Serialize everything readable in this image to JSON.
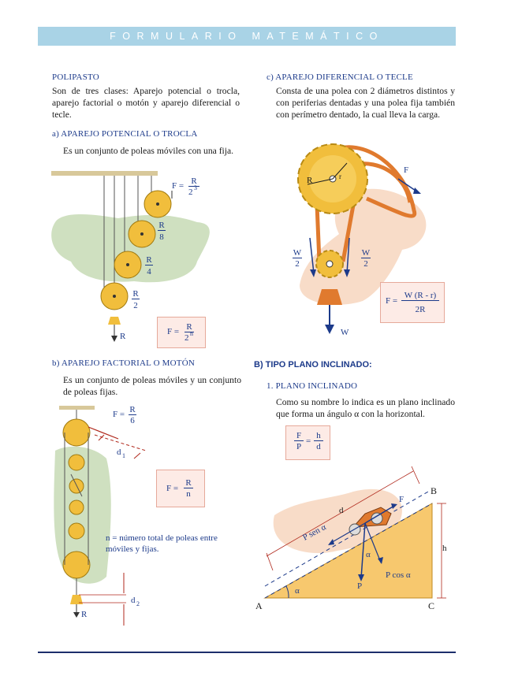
{
  "header": {
    "title": "FORMULARIO MATEMÁTICO"
  },
  "left": {
    "polipasto_title": "POLIPASTO",
    "polipasto_text": "Son de tres clases: Aparejo potencial o trocla, aparejo factorial o motón y aparejo diferencial o tecle.",
    "a_title": "a) APAREJO POTENCIAL O TROCLA",
    "a_text": "Es un conjunto de poleas móviles con una fija.",
    "a_fig": {
      "f_label": "F =",
      "f_num": "R",
      "f_den": "2",
      "f_den_exp": "3",
      "l1_num": "R",
      "l1_den": "8",
      "l2_num": "R",
      "l2_den": "4",
      "l3_num": "R",
      "l3_den": "2",
      "r_label": "R",
      "box_label": "F =",
      "box_num": "R",
      "box_den": "2",
      "box_den_exp": "n"
    },
    "b_title": "b) APAREJO FACTORIAL O MOTÓN",
    "b_text": "Es un conjunto de poleas móviles y un conjunto de poleas fijas.",
    "b_fig": {
      "f_label": "F =",
      "f_num": "R",
      "f_den": "6",
      "d1": "d",
      "d1_sub": "1",
      "box_label": "F =",
      "box_num": "R",
      "box_den": "n",
      "n_def": "n = número total de poleas entre móviles y fijas.",
      "d2": "d",
      "d2_sub": "2",
      "r_label": "R"
    }
  },
  "right": {
    "c_title": "c) APAREJO DIFERENCIAL O TECLE",
    "c_text": "Consta de una polea con 2 diámetros distintos y con periferias dentadas y una polea fija también con perímetro dentado, la cual lleva la carga.",
    "c_fig": {
      "R": "R",
      "r": "r",
      "F": "F",
      "wl_num": "W",
      "wl_den": "2",
      "wr_num": "W",
      "wr_den": "2",
      "W": "W",
      "box_label": "F =",
      "box_num": "W (R - r)",
      "box_den": "2R"
    },
    "B_title": "B) TIPO PLANO INCLINADO:",
    "p1_title": "1. PLANO INCLINADO",
    "p1_text": "Como su nombre lo indica es un plano inclinado que forma un ángulo α con la horizontal.",
    "p1_box": {
      "num1": "F",
      "den1": "P",
      "eq": "=",
      "num2": "h",
      "den2": "d"
    },
    "incline": {
      "A": "A",
      "B": "B",
      "C": "C",
      "d": "d",
      "h": "h",
      "F": "F",
      "P": "P",
      "alpha": "α",
      "alpha2": "α",
      "psen": "P sen α",
      "pcos": "P cos α"
    }
  },
  "colors": {
    "navy": "#1c3a8a",
    "header": "#a9d3e6",
    "pulley": "#f1be3c",
    "box": "#fdebe6",
    "incline": "#f7c86e",
    "rope": "#e07a2e"
  }
}
